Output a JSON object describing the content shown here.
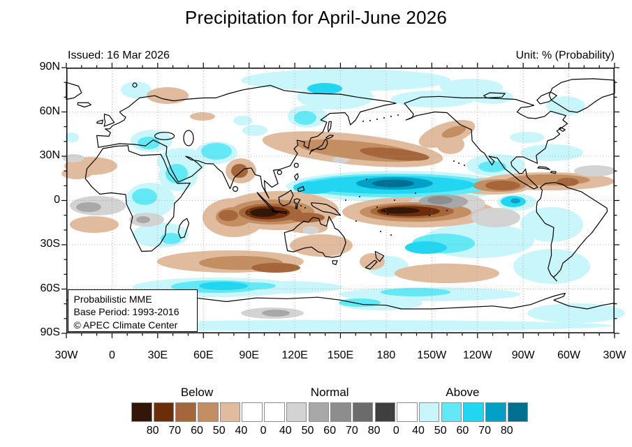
{
  "title": "Precipitation for April-June 2026",
  "header": {
    "issued": "Issued: 16 Mar 2026",
    "unit": "Unit: % (Probability)"
  },
  "info_box": {
    "lines": [
      "Probabilistic MME",
      "Base Period: 1993-2016",
      "© APEC Climate Center"
    ]
  },
  "axes": {
    "lat_labels": [
      "90N",
      "60N",
      "30N",
      "0",
      "30S",
      "60S",
      "90S"
    ],
    "lon_labels": [
      "30W",
      "0",
      "30E",
      "60E",
      "90E",
      "120E",
      "150E",
      "180",
      "150W",
      "120W",
      "90W",
      "60W",
      "30W"
    ]
  },
  "colorbar": {
    "categories": [
      "Below",
      "Normal",
      "Above"
    ],
    "colors": [
      "#321708",
      "#6e2d0a",
      "#a4663a",
      "#c28e62",
      "#e0bb9d",
      "#ffffff",
      "#ffffff",
      "#d3d3d3",
      "#a8a8a8",
      "#8d8d8d",
      "#6b6b6b",
      "#3f3f3f",
      "#ffffff",
      "#c9f6fa",
      "#63e9f5",
      "#22d5f0",
      "#009fc6",
      "#006f92"
    ],
    "edge_labels": [
      "80",
      "70",
      "60",
      "50",
      "40",
      "0",
      "40",
      "50",
      "60",
      "70",
      "80",
      "0",
      "40",
      "50",
      "60",
      "70",
      "80"
    ]
  },
  "chart_data": {
    "type": "heatmap",
    "title": "Precipitation for April-June 2026",
    "unit": "% (Probability)",
    "issued": "16 Mar 2026",
    "method": "Probabilistic MME",
    "base_period": "1993-2016",
    "source": "APEC Climate Center",
    "projection": "equirectangular world map, Pacific-centered, longitude 30W eastward through 180 back to 30W",
    "x_axis": {
      "label": "longitude",
      "ticks": [
        "30W",
        "0",
        "30E",
        "60E",
        "90E",
        "120E",
        "150E",
        "180",
        "150W",
        "120W",
        "90W",
        "60W",
        "30W"
      ],
      "minor_tick_deg": 10
    },
    "y_axis": {
      "label": "latitude",
      "ticks": [
        "90N",
        "60N",
        "30N",
        "0",
        "30S",
        "60S",
        "90S"
      ],
      "minor_tick_deg": 10
    },
    "grid": "dotted gray every 30 degrees",
    "legend_position": "bottom center, three-part categorical colorbar",
    "probability_levels": [
      40,
      50,
      60,
      70,
      80
    ],
    "category_palettes": {
      "Below": "browns",
      "Normal": "grays",
      "Above": "cyans/blues"
    },
    "regions": [
      {
        "area": "Equatorial central Pacific ~140E-130W, 0-12N",
        "category": "Above",
        "probability": "60-80+"
      },
      {
        "area": "Maritime Continent / Sumatra-Borneo ~90E-135E, 12S-3N",
        "category": "Below",
        "probability": "60-80+"
      },
      {
        "area": "Central South Pacific ~175E-130W, 5-15S",
        "category": "Below",
        "probability": "60-80+"
      },
      {
        "area": "Subtropical NW-central Pacific ~130E-170W, 18-32N",
        "category": "Below",
        "probability": "40-60"
      },
      {
        "area": "Gulf of Alaska / US West Coast ~155W-120W, 33-50N",
        "category": "Below",
        "probability": "40-50"
      },
      {
        "area": "Bering Sea / NE Siberia / Arctic",
        "category": "Above",
        "probability": "40-60"
      },
      {
        "area": "Sea of Okhotsk",
        "category": "Above",
        "probability": "40-60"
      },
      {
        "area": "Central Europe / Mediterranean",
        "category": "Above",
        "probability": "40-60"
      },
      {
        "area": "Arabian Peninsula / Red Sea / Horn of Africa",
        "category": "Above",
        "probability": "40-60"
      },
      {
        "area": "Iran-Afghanistan-Pakistan",
        "category": "Above",
        "probability": "40-50"
      },
      {
        "area": "Central equatorial Africa",
        "category": "Above",
        "probability": "40-50"
      },
      {
        "area": "Southern Africa / Madagascar",
        "category": "Above",
        "probability": "40-50"
      },
      {
        "area": "SW Indian Ocean east of Madagascar ~8-22S",
        "category": "Below",
        "probability": "40-70"
      },
      {
        "area": "Southern Indian Ocean ~30E-130E, 32-42S",
        "category": "Below",
        "probability": "40-60"
      },
      {
        "area": "Southern Indian Ocean ~45-55S",
        "category": "Above",
        "probability": "40-60"
      },
      {
        "area": "East India / Bay of Bengal coast",
        "category": "Below",
        "probability": "40-60"
      },
      {
        "area": "Northern Australia / New Guinea",
        "category": "Below",
        "probability": "40-60"
      },
      {
        "area": "Central South Pacific ~40-50S",
        "category": "Below",
        "probability": "40-50"
      },
      {
        "area": "New Zealand",
        "category": "Below",
        "probability": "40-50"
      },
      {
        "area": "Caribbean / tropical Atlantic / N South America ~5-15N",
        "category": "Below",
        "probability": "40-80"
      },
      {
        "area": "East Pacific ITCZ ~125W-95W, 5-12N",
        "category": "Below",
        "probability": "40-60"
      },
      {
        "area": "Equatorial eastern Pacific ~150W-110W, 0-10S",
        "category": "Normal",
        "probability": "40-60"
      },
      {
        "area": "Coastal Ecuador / Peru",
        "category": "Above",
        "probability": "50-70"
      },
      {
        "area": "Gulf of Mexico / eastern Mexico",
        "category": "Above",
        "probability": "40-60"
      },
      {
        "area": "Southeast Pacific ~20-35S",
        "category": "Above",
        "probability": "40-60"
      },
      {
        "area": "Circum-Antarctic coastal band",
        "category": "Above",
        "probability": "40-50"
      }
    ]
  }
}
